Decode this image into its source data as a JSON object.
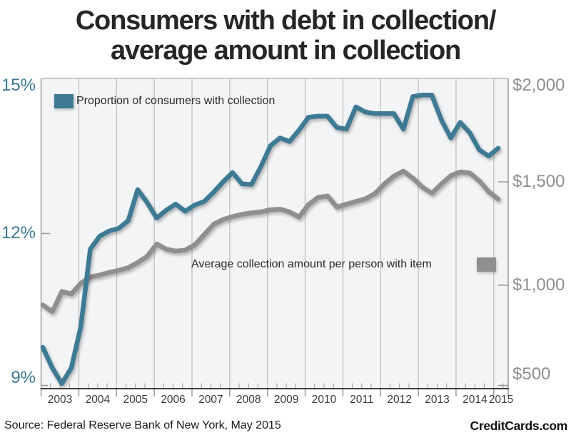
{
  "title": {
    "line1": "Consumers with debt in collection/",
    "line2": "average amount in collection"
  },
  "legend": {
    "series1_label": "Proportion of consumers with collection",
    "series2_label": "Average collection amount per person with item"
  },
  "y_axis_left": {
    "labels": [
      "15%",
      "12%",
      "9%"
    ]
  },
  "y_axis_right": {
    "labels": [
      "$2,000",
      "$1,500",
      "$1,000",
      "$500"
    ]
  },
  "x_axis": {
    "years": [
      "2003",
      "2004",
      "2005",
      "2006",
      "2007",
      "2008",
      "2009",
      "2010",
      "2011",
      "2012",
      "2013",
      "2014",
      "2015"
    ]
  },
  "footer": {
    "source": "Source: Federal Reserve Bank of New York, May 2015",
    "brand": "CreditCards.com"
  },
  "colors": {
    "teal": "#3e7a94",
    "gray": "#8f8f8f",
    "teal_text": "#3a7893",
    "gray_text": "#8e8e8e",
    "grid": "#c7c7c7",
    "plot_bg": "#f3f4f6",
    "border": "#9a9a9a",
    "bottom_axis": "#3f3f3f"
  },
  "chart_data": {
    "type": "line",
    "title": "Consumers with debt in collection/average amount in collection",
    "x": [
      "2003Q1",
      "2003Q2",
      "2003Q3",
      "2003Q4",
      "2004Q1",
      "2004Q2",
      "2004Q3",
      "2004Q4",
      "2005Q1",
      "2005Q2",
      "2005Q3",
      "2005Q4",
      "2006Q1",
      "2006Q2",
      "2006Q3",
      "2006Q4",
      "2007Q1",
      "2007Q2",
      "2007Q3",
      "2007Q4",
      "2008Q1",
      "2008Q2",
      "2008Q3",
      "2008Q4",
      "2009Q1",
      "2009Q2",
      "2009Q3",
      "2009Q4",
      "2010Q1",
      "2010Q2",
      "2010Q3",
      "2010Q4",
      "2011Q1",
      "2011Q2",
      "2011Q3",
      "2011Q4",
      "2012Q1",
      "2012Q2",
      "2012Q3",
      "2012Q4",
      "2013Q1",
      "2013Q2",
      "2013Q3",
      "2013Q4",
      "2014Q1",
      "2014Q2",
      "2014Q3",
      "2014Q4",
      "2015Q1"
    ],
    "series": [
      {
        "name": "Proportion of consumers with collection",
        "axis": "left",
        "unit": "%",
        "color": "#3e7a94",
        "values": [
          9.8,
          9.4,
          9.1,
          9.4,
          10.2,
          11.7,
          11.95,
          12.05,
          12.1,
          12.25,
          12.85,
          12.6,
          12.3,
          12.45,
          12.57,
          12.43,
          12.55,
          12.62,
          12.8,
          13.0,
          13.18,
          12.96,
          12.95,
          13.3,
          13.7,
          13.85,
          13.78,
          14.0,
          14.25,
          14.27,
          14.27,
          14.05,
          14.02,
          14.45,
          14.35,
          14.32,
          14.32,
          14.32,
          14.02,
          14.65,
          14.68,
          14.68,
          14.2,
          13.85,
          14.15,
          13.95,
          13.62,
          13.5,
          13.65
        ]
      },
      {
        "name": "Average collection amount per person with item",
        "axis": "right",
        "unit": "USD",
        "color": "#8f8f8f",
        "values": [
          905,
          872,
          970,
          958,
          1010,
          1040,
          1050,
          1062,
          1072,
          1085,
          1110,
          1140,
          1200,
          1175,
          1165,
          1170,
          1195,
          1245,
          1295,
          1318,
          1332,
          1343,
          1350,
          1355,
          1365,
          1368,
          1355,
          1330,
          1390,
          1425,
          1432,
          1378,
          1392,
          1405,
          1418,
          1443,
          1490,
          1528,
          1552,
          1518,
          1475,
          1445,
          1490,
          1530,
          1548,
          1543,
          1505,
          1452,
          1417
        ]
      }
    ],
    "y_left": {
      "min": 9,
      "max": 15,
      "ticks": [
        9,
        12,
        15
      ],
      "label_format": "percent"
    },
    "y_right": {
      "min": 500,
      "max": 2000,
      "ticks": [
        500,
        1000,
        1500,
        2000
      ],
      "label_format": "dollars"
    },
    "grid": "vertical-lines-at-year-boundaries",
    "legend_position": "inside-plot"
  }
}
